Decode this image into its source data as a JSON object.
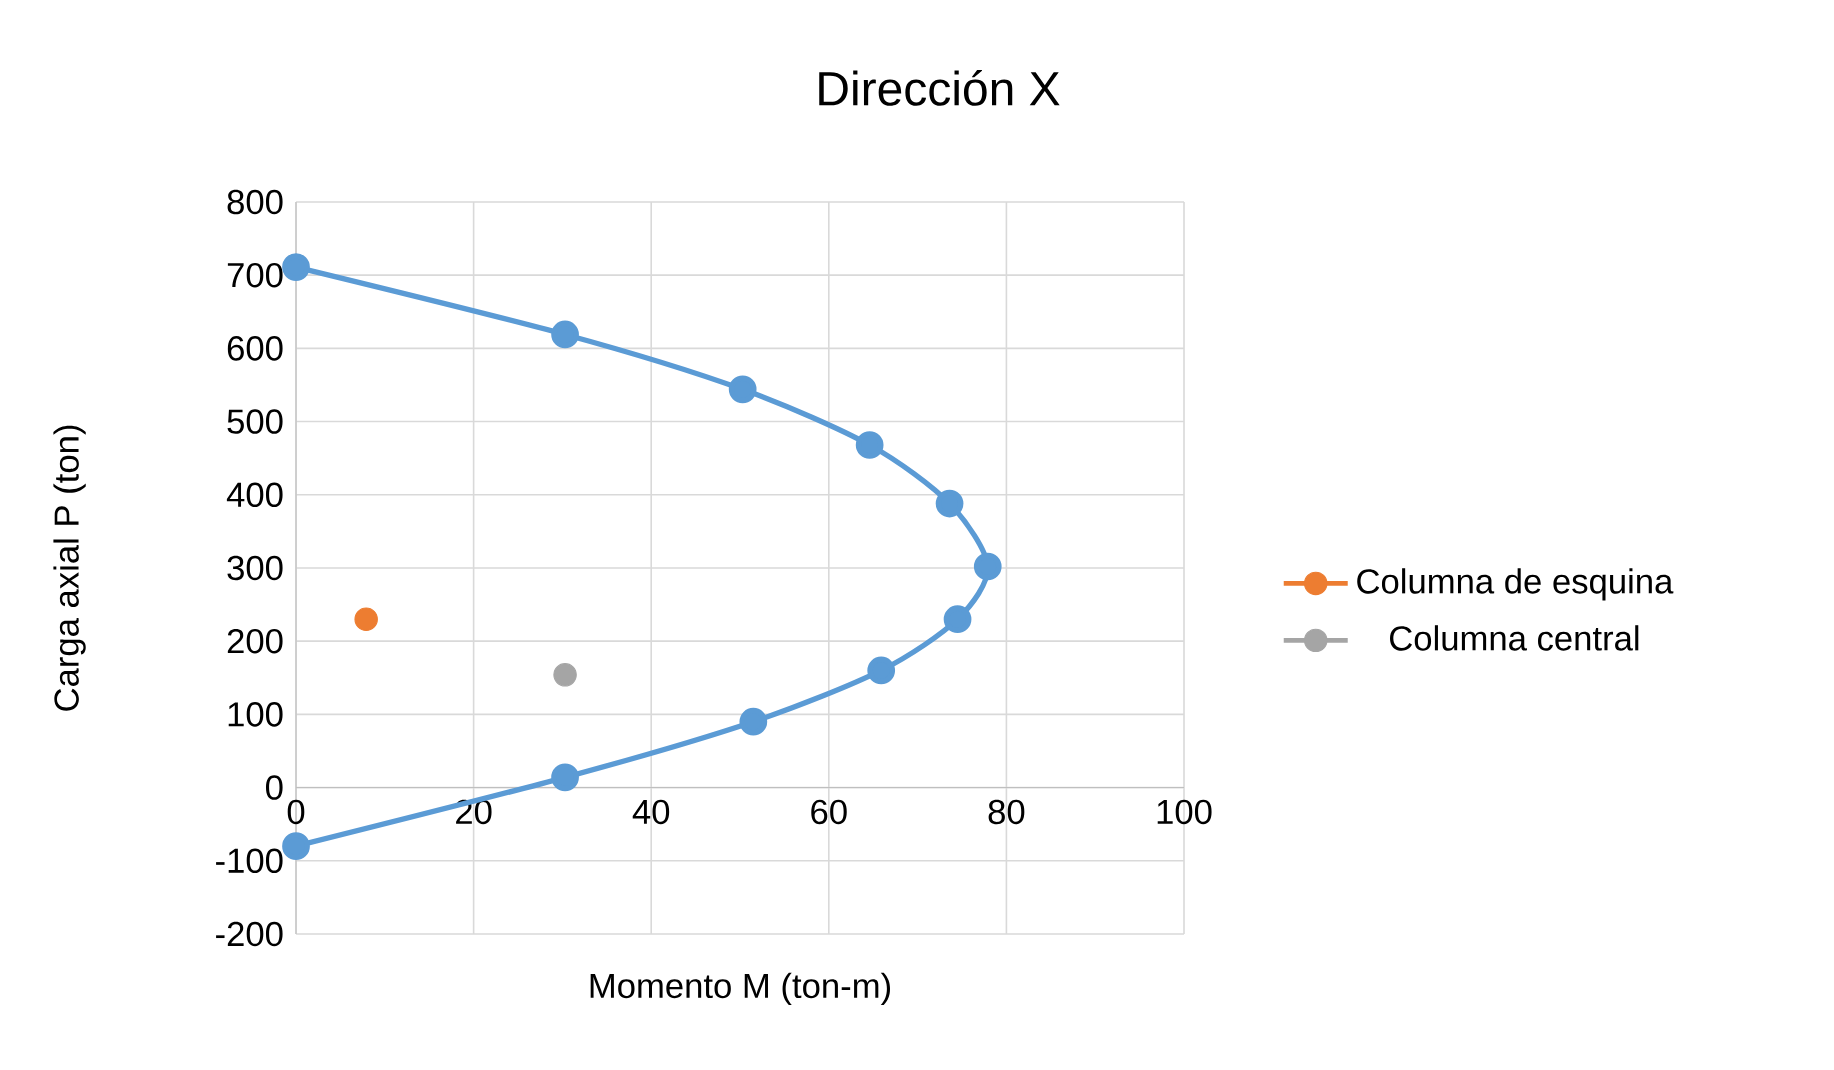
{
  "chart_data": {
    "type": "scatter",
    "title": "Dirección X",
    "xlabel": "Momento M (ton-m)",
    "ylabel": "Carga axial P (ton)",
    "xlim": [
      0,
      100
    ],
    "ylim": [
      -200,
      800
    ],
    "xticks": [
      0,
      20,
      40,
      60,
      80,
      100
    ],
    "yticks": [
      -200,
      -100,
      0,
      100,
      200,
      300,
      400,
      500,
      600,
      700,
      800
    ],
    "grid": true,
    "legend": "right",
    "marker": "circle",
    "series": [
      {
        "type": "line",
        "color": "#5b9bd5",
        "x": [
          0,
          30.3,
          50.3,
          64.6,
          73.6,
          77.9,
          74.5,
          65.9,
          51.5,
          30.3,
          0
        ],
        "values": [
          711,
          619,
          544,
          468,
          388,
          302,
          230,
          160,
          90,
          14,
          -80
        ]
      },
      {
        "name": "Columna de esquina",
        "color": "#ed7d31",
        "x": [
          7.9
        ],
        "values": [
          230
        ]
      },
      {
        "name": "Columna central",
        "color": "#a5a5a5",
        "x": [
          30.3
        ],
        "values": [
          154
        ]
      }
    ]
  }
}
